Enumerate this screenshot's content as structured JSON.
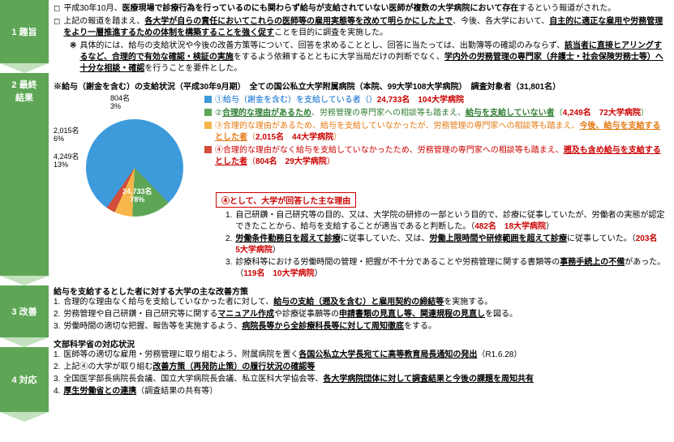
{
  "colors": {
    "green_tab": "#5ea656",
    "arrow": "#c3e0bf",
    "blue_slice": "#3d9bdc",
    "green_slice": "#5ea656",
    "orange_slice": "#f6b64a",
    "red_slice": "#d24d3a"
  },
  "tabs": [
    "1 趣旨",
    "2 最終\n結果",
    "3 改善",
    "4 対応"
  ],
  "sec1": {
    "line1_pre": "平成30年10月、",
    "line1_bold": "医療現場で診療行為を行っているのにも関わらず給与が支給されていない医師が複数の大学病院において存在",
    "line1_post": "するという報道がされた。",
    "line2_pre": "上記の報道を踏まえ、",
    "line2_u1": "各大学が自らの責任においてこれらの医師等の雇用実態等を改めて明らかにした上で",
    "line2_mid": "、今後、各大学において、",
    "line2_u2": "自主的に適正な雇用や労務管理をより一層推進するための体制を構築することを強く促す",
    "line2_post": "ことを目的に調査を実施した。",
    "star_pre": "具体的には、給与の支給状況や今後の改善方策等について、回答を求めることとし、回答に当たっては、出勤簿等の確認のみならず、",
    "star_u1": "該当者に直接ヒアリングするなど、合理的で有効な確認・検証の実施",
    "star_mid": "をするよう依頼するとともに大学当局だけの判断でなく、",
    "star_u2": "学内外の労務管理の専門家（弁護士・社会保険労務士等）へ十分な相談・確認",
    "star_post": "を行うことを要件とした。"
  },
  "sec2": {
    "header": "※給与（謝金を含む）の支給状況（平成30年9月期）　全ての国公私立大学附属病院（本院、99大学108大学病院）　調査対象者（31,801名）",
    "pie": {
      "slices": [
        {
          "label": "24,733名",
          "sub": "78%",
          "pct": 78,
          "color": "#3d9bdc"
        },
        {
          "label": "4,249名",
          "sub": "13%",
          "pct": 13,
          "color": "#5ea656"
        },
        {
          "label": "2,015名",
          "sub": "6%",
          "pct": 6,
          "color": "#f6b64a"
        },
        {
          "label": "804名",
          "sub": "3%",
          "pct": 3,
          "color": "#d24d3a"
        }
      ]
    },
    "legend": [
      {
        "sq": "#3d9bdc",
        "cls": "blue",
        "text_pre": "①給与（謝金を含む）を支給している者（",
        "ref": "24,733名　104大学病院",
        "text_post": "）"
      },
      {
        "sq": "#5ea656",
        "cls": "green-t",
        "text_pre": "②",
        "u1": "合理的な理由があるため",
        "mid": "、労務管理の専門家への相談等も踏まえ、",
        "u2": "給与を支給していない者",
        "text_post": "（",
        "ref": "4,249名　72大学病院",
        "close": "）"
      },
      {
        "sq": "#f6b64a",
        "cls": "orange-t",
        "text_pre": "③合理的な理由があるため、給与を支給していなかったが、労務管理の専門家への相談等も踏まえ、",
        "u1": "今後、給与を支給するとした者",
        "text_post": "（",
        "ref": "2,015名　44大学病院",
        "close": "）"
      },
      {
        "sq": "#d24d3a",
        "cls": "red-t",
        "text_pre": "④合理的な理由がなく給与を支給していなかったため、労務管理の専門家への相談等も踏まえ、",
        "u1": "遡及も含め給与を支給するとした者",
        "text_post": "（",
        "ref": "804名　29大学病院",
        "close": "）"
      }
    ],
    "reason_hdr": "④として、大学が回答した主な理由",
    "reasons": [
      {
        "n": "1.",
        "text": "自己研鑽・自己研究等の目的、又は、大学院の研修の一部という目的で、診療に従事していたが、労働者の実態が認定できたことから、給与を支給することが適当であると判断した。（",
        "ref": "482名　18大学病院",
        "close": "）"
      },
      {
        "n": "2.",
        "u1": "労働条件勤務日を超えて診療",
        "mid": "に従事していた、又は、",
        "u2": "労働上限時間や研修範囲を超えて診療",
        "post": "に従事していた。（",
        "ref": "203名　5大学病院",
        "close": "）"
      },
      {
        "n": "3.",
        "text": "診療科等における労働時間の管理・把握が不十分であることや労務管理に関する書類等の",
        "u1": "事務手続上の不備",
        "post": "があった。（",
        "ref": "119名　10大学病院",
        "close": "）"
      }
    ]
  },
  "sec3": {
    "header": "給与を支給するとした者に対する大学の主な改善方策",
    "items": [
      {
        "n": "1.",
        "pre": "合理的な理由なく給与を支給していなかった者に対して、",
        "u": "給与の支給（遡及を含む）と雇用契約の締結等",
        "post": "を実施する。"
      },
      {
        "n": "2.",
        "pre": "労務管理や自己研鑽・自己研究等に関する",
        "u": "マニュアル作成",
        "mid": "や診療従事願等の",
        "u2": "申請書類の見直し等、関連規程の見直し",
        "post": "を図る。"
      },
      {
        "n": "3.",
        "pre": "労働時間の適切な把握、報告等を実施するよう、",
        "u": "病院長等から全診療科長等に対して周知徹底",
        "post": "をする。"
      }
    ]
  },
  "sec4": {
    "header": "文部科学省の対応状況",
    "items": [
      {
        "n": "1.",
        "pre": "医師等の適切な雇用・労務管理に取り組むよう、附属病院を置く",
        "u": "各国公私立大学長宛てに高等教育局長通知の発出",
        "post": "（R1.6.28）"
      },
      {
        "n": "2.",
        "pre": "上記④の大学が取り組む",
        "u": "改善方策（再発防止策）の履行状況の確認等",
        "post": ""
      },
      {
        "n": "3.",
        "pre": "全国医学部長病院長会議、国立大学病院長会議、私立医科大学協会等、",
        "u": "各大学病院団体に対して調査結果と今後の課題を周知共有",
        "post": ""
      },
      {
        "n": "4.",
        "u": "厚生労働省との連携",
        "post": "（調査結果の共有等）"
      }
    ]
  }
}
